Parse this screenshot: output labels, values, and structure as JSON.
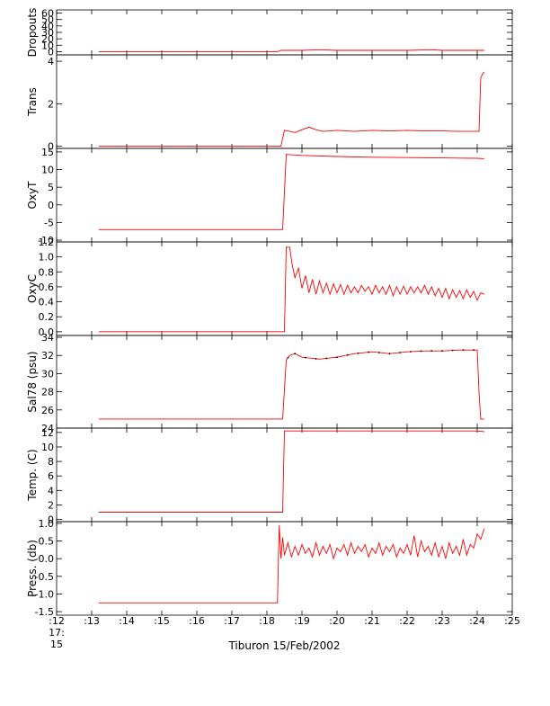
{
  "chart_data": {
    "type": "line",
    "title": "",
    "xlabel": "Tiburon 15/Feb/2002",
    "x_ticks": [
      ":12",
      ":13",
      ":14",
      ":15",
      ":16",
      ":17",
      ":18",
      ":19",
      ":20",
      ":21",
      ":22",
      ":23",
      ":24",
      ":25"
    ],
    "x_tick_values": [
      12,
      13,
      14,
      15,
      16,
      17,
      18,
      19,
      20,
      21,
      22,
      23,
      24,
      25
    ],
    "x_first_tick_sub": [
      "17:",
      "15"
    ],
    "xlim": [
      12,
      25
    ],
    "x_units": "minutes past 17:00",
    "colors": {
      "series": "#ff0000",
      "sample": "#000000",
      "axis": "#000000"
    },
    "panels": [
      {
        "ylabel": "Dropouts",
        "ylim": [
          -5,
          65
        ],
        "y_ticks": [
          0,
          10,
          20,
          30,
          40,
          50,
          60
        ],
        "y_tick_labels": [
          "0",
          "10",
          "20",
          "30",
          "40",
          "50",
          "60"
        ],
        "x": [
          13.2,
          18.3,
          18.4,
          19.0,
          19.5,
          20.0,
          21.0,
          22.0,
          22.7,
          23.0,
          24.0,
          24.2
        ],
        "y": [
          0,
          0,
          2,
          2,
          3,
          2,
          2,
          2,
          3,
          2,
          2,
          2
        ]
      },
      {
        "ylabel": "Trans",
        "ylim": [
          -0.1,
          4.3
        ],
        "y_ticks": [
          0,
          2,
          4
        ],
        "y_tick_labels": [
          "0",
          "2",
          "4"
        ],
        "x": [
          13.2,
          18.4,
          18.5,
          18.6,
          18.8,
          19.0,
          19.2,
          19.4,
          19.6,
          19.8,
          20.0,
          20.5,
          21.0,
          21.5,
          22.0,
          22.5,
          23.0,
          23.5,
          24.05,
          24.1,
          24.15,
          24.2
        ],
        "y": [
          0.0,
          0.0,
          0.75,
          0.72,
          0.65,
          0.78,
          0.9,
          0.78,
          0.7,
          0.72,
          0.75,
          0.7,
          0.75,
          0.72,
          0.75,
          0.72,
          0.72,
          0.7,
          0.7,
          3.2,
          3.4,
          3.5
        ]
      },
      {
        "ylabel": "OxyT",
        "ylim": [
          -10.5,
          16
        ],
        "y_ticks": [
          -10,
          -5,
          0,
          5,
          10,
          15
        ],
        "y_tick_labels": [
          "-10",
          "-5",
          "0",
          "5",
          "10",
          "15"
        ],
        "x": [
          13.2,
          18.45,
          18.55,
          19.0,
          20.0,
          21.0,
          22.0,
          23.0,
          24.0,
          24.2
        ],
        "y": [
          -7.0,
          -7.0,
          14.3,
          14.0,
          13.7,
          13.5,
          13.4,
          13.3,
          13.2,
          13.1
        ]
      },
      {
        "ylabel": "OxyC",
        "ylim": [
          -0.05,
          1.2
        ],
        "y_ticks": [
          0.0,
          0.2,
          0.4,
          0.6,
          0.8,
          1.0,
          1.2
        ],
        "y_tick_labels": [
          "0.0",
          "0.2",
          "0.4",
          "0.6",
          "0.8",
          "1.0",
          "1.2"
        ],
        "x": [
          13.2,
          18.5,
          18.55,
          18.65,
          18.72,
          18.8,
          18.9,
          19.0,
          19.1,
          19.2,
          19.3,
          19.4,
          19.5,
          19.6,
          19.7,
          19.8,
          19.9,
          20.0,
          20.1,
          20.2,
          20.3,
          20.4,
          20.5,
          20.6,
          20.7,
          20.8,
          20.9,
          21.0,
          21.1,
          21.2,
          21.3,
          21.4,
          21.5,
          21.6,
          21.7,
          21.8,
          21.9,
          22.0,
          22.1,
          22.2,
          22.3,
          22.4,
          22.5,
          22.6,
          22.7,
          22.8,
          22.9,
          23.0,
          23.1,
          23.2,
          23.3,
          23.4,
          23.5,
          23.6,
          23.7,
          23.8,
          23.9,
          24.0,
          24.1,
          24.2
        ],
        "y": [
          0.0,
          0.0,
          1.13,
          1.13,
          0.9,
          0.72,
          0.85,
          0.58,
          0.75,
          0.52,
          0.7,
          0.5,
          0.68,
          0.52,
          0.65,
          0.5,
          0.64,
          0.52,
          0.63,
          0.5,
          0.62,
          0.52,
          0.6,
          0.52,
          0.62,
          0.54,
          0.6,
          0.5,
          0.62,
          0.52,
          0.6,
          0.5,
          0.62,
          0.48,
          0.6,
          0.5,
          0.61,
          0.5,
          0.6,
          0.52,
          0.6,
          0.52,
          0.62,
          0.5,
          0.6,
          0.48,
          0.58,
          0.46,
          0.58,
          0.44,
          0.56,
          0.46,
          0.55,
          0.44,
          0.56,
          0.46,
          0.54,
          0.42,
          0.52,
          0.5
        ]
      },
      {
        "ylabel": "Sal78 (psu)",
        "ylim": [
          24,
          34.2
        ],
        "y_ticks": [
          24,
          26,
          28,
          30,
          32,
          34
        ],
        "y_tick_labels": [
          "24",
          "26",
          "28",
          "30",
          "32",
          "34"
        ],
        "x": [
          13.2,
          18.45,
          18.55,
          18.65,
          18.8,
          19.0,
          19.5,
          20.0,
          20.5,
          21.0,
          21.5,
          22.0,
          22.5,
          23.0,
          23.5,
          24.0,
          24.05,
          24.1,
          24.2
        ],
        "y": [
          25.0,
          25.0,
          31.5,
          32.0,
          32.2,
          31.8,
          31.6,
          31.8,
          32.2,
          32.4,
          32.2,
          32.4,
          32.5,
          32.5,
          32.6,
          32.6,
          28.0,
          25.0,
          25.0
        ],
        "sample_x": [
          18.6,
          18.8,
          19.1,
          19.4,
          19.7,
          20.0,
          20.3,
          20.6,
          20.9,
          21.2,
          21.5,
          21.8,
          22.1,
          22.4,
          22.7,
          23.0,
          23.3,
          23.6,
          23.9
        ]
      },
      {
        "ylabel": "Temp. (C)",
        "ylim": [
          -0.3,
          12.6
        ],
        "y_ticks": [
          0,
          2,
          4,
          6,
          8,
          10,
          12
        ],
        "y_tick_labels": [
          "0",
          "2",
          "4",
          "6",
          "8",
          "10",
          "12"
        ],
        "x": [
          13.2,
          18.45,
          18.5,
          19.0,
          20.0,
          21.0,
          22.0,
          23.0,
          24.0,
          24.2
        ],
        "y": [
          1.0,
          1.0,
          12.2,
          12.2,
          12.2,
          12.2,
          12.2,
          12.2,
          12.2,
          12.1
        ]
      },
      {
        "ylabel": "Press. (db)",
        "ylim": [
          -1.6,
          1.05
        ],
        "y_ticks": [
          -1.5,
          -1.0,
          -0.5,
          0.0,
          0.5,
          1.0
        ],
        "y_tick_labels": [
          "-1.5",
          "-1.0",
          "-0.5",
          "0.0",
          "0.5",
          "1.0"
        ],
        "x": [
          13.2,
          18.3,
          18.35,
          18.4,
          18.45,
          18.5,
          18.6,
          18.7,
          18.8,
          18.9,
          19.0,
          19.1,
          19.2,
          19.3,
          19.4,
          19.5,
          19.6,
          19.7,
          19.8,
          19.9,
          20.0,
          20.1,
          20.2,
          20.3,
          20.4,
          20.5,
          20.6,
          20.7,
          20.8,
          20.9,
          21.0,
          21.1,
          21.2,
          21.3,
          21.4,
          21.5,
          21.6,
          21.7,
          21.8,
          21.9,
          22.0,
          22.1,
          22.2,
          22.3,
          22.4,
          22.5,
          22.6,
          22.7,
          22.8,
          22.9,
          23.0,
          23.1,
          23.2,
          23.3,
          23.4,
          23.5,
          23.6,
          23.7,
          23.8,
          23.9,
          24.0,
          24.1,
          24.2
        ],
        "y": [
          -1.25,
          -1.25,
          0.95,
          0.0,
          0.6,
          0.1,
          0.45,
          0.05,
          0.35,
          0.1,
          0.4,
          0.15,
          0.3,
          0.05,
          0.45,
          0.1,
          0.35,
          0.15,
          0.4,
          0.0,
          0.3,
          0.2,
          0.4,
          0.1,
          0.45,
          0.15,
          0.35,
          0.2,
          0.4,
          0.05,
          0.3,
          0.15,
          0.45,
          0.1,
          0.35,
          0.2,
          0.4,
          0.05,
          0.3,
          0.15,
          0.4,
          0.1,
          0.65,
          0.05,
          0.5,
          0.2,
          0.35,
          0.1,
          0.45,
          0.05,
          0.35,
          0.0,
          0.45,
          0.15,
          0.35,
          0.1,
          0.55,
          0.1,
          0.4,
          0.3,
          0.7,
          0.55,
          0.85
        ]
      }
    ]
  }
}
